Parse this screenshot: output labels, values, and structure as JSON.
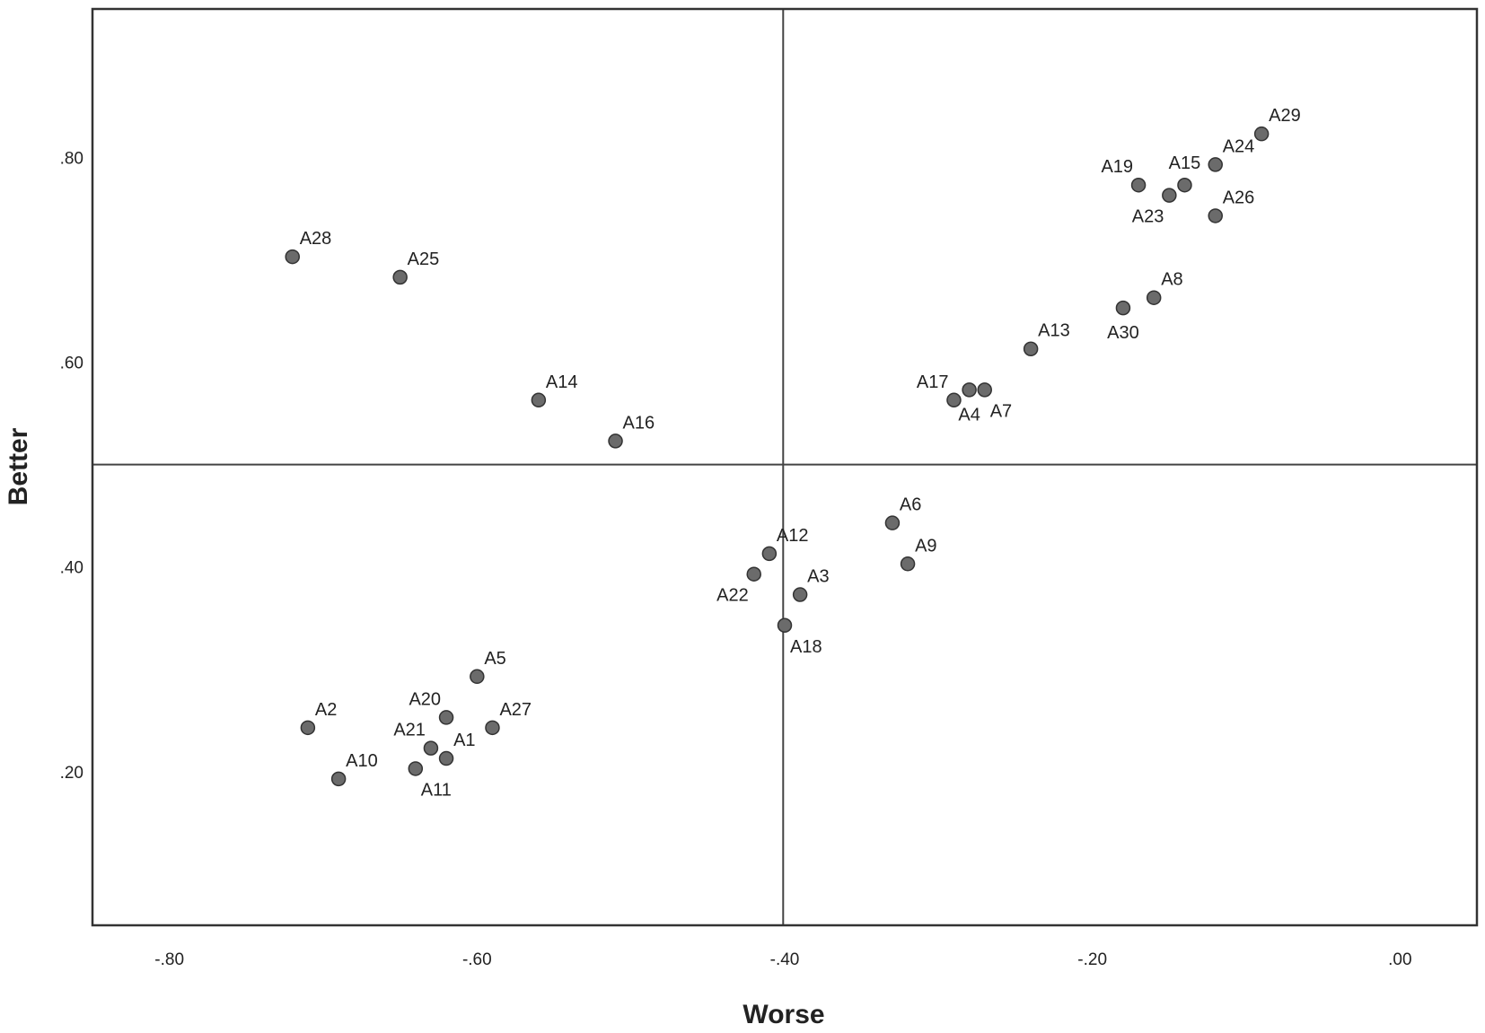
{
  "chart_data": {
    "type": "scatter",
    "xlabel": "Worse",
    "ylabel": "Better",
    "xlim": [
      -0.85,
      0.05
    ],
    "ylim": [
      0.05,
      0.945
    ],
    "x_ticks": [
      -0.8,
      -0.6,
      -0.4,
      -0.2,
      0.0
    ],
    "x_tick_labels": [
      "-.80",
      "-.60",
      "-.40",
      "-.20",
      ".00"
    ],
    "y_ticks": [
      0.2,
      0.4,
      0.6,
      0.8
    ],
    "y_tick_labels": [
      ".20",
      ".40",
      ".60",
      ".80"
    ],
    "reference_lines": {
      "x": -0.401,
      "y": 0.5
    },
    "grid": false,
    "legend": "none",
    "colors": {
      "point_fill": "#6b6b6b",
      "point_stroke": "#333333",
      "line": "#444444"
    },
    "points": [
      {
        "label": "A1",
        "x": -0.62,
        "y": 0.213,
        "label_pos": "ne"
      },
      {
        "label": "A2",
        "x": -0.71,
        "y": 0.243,
        "label_pos": "ne"
      },
      {
        "label": "A3",
        "x": -0.39,
        "y": 0.373,
        "label_pos": "ne"
      },
      {
        "label": "A4",
        "x": -0.28,
        "y": 0.573,
        "label_pos": "s"
      },
      {
        "label": "A5",
        "x": -0.6,
        "y": 0.293,
        "label_pos": "ne"
      },
      {
        "label": "A6",
        "x": -0.33,
        "y": 0.443,
        "label_pos": "ne"
      },
      {
        "label": "A7",
        "x": -0.27,
        "y": 0.573,
        "label_pos": "se"
      },
      {
        "label": "A8",
        "x": -0.16,
        "y": 0.663,
        "label_pos": "ne"
      },
      {
        "label": "A9",
        "x": -0.32,
        "y": 0.403,
        "label_pos": "ne"
      },
      {
        "label": "A10",
        "x": -0.69,
        "y": 0.193,
        "label_pos": "ne"
      },
      {
        "label": "A11",
        "x": -0.64,
        "y": 0.203,
        "label_pos": "se"
      },
      {
        "label": "A12",
        "x": -0.41,
        "y": 0.413,
        "label_pos": "ne"
      },
      {
        "label": "A13",
        "x": -0.24,
        "y": 0.613,
        "label_pos": "ne"
      },
      {
        "label": "A14",
        "x": -0.56,
        "y": 0.563,
        "label_pos": "ne"
      },
      {
        "label": "A15",
        "x": -0.14,
        "y": 0.773,
        "label_pos": "n"
      },
      {
        "label": "A16",
        "x": -0.51,
        "y": 0.523,
        "label_pos": "ne"
      },
      {
        "label": "A17",
        "x": -0.29,
        "y": 0.563,
        "label_pos": "nw"
      },
      {
        "label": "A18",
        "x": -0.4,
        "y": 0.343,
        "label_pos": "se"
      },
      {
        "label": "A19",
        "x": -0.17,
        "y": 0.773,
        "label_pos": "nw"
      },
      {
        "label": "A20",
        "x": -0.62,
        "y": 0.253,
        "label_pos": "nw"
      },
      {
        "label": "A21",
        "x": -0.63,
        "y": 0.223,
        "label_pos": "nw"
      },
      {
        "label": "A22",
        "x": -0.42,
        "y": 0.393,
        "label_pos": "sw"
      },
      {
        "label": "A23",
        "x": -0.15,
        "y": 0.763,
        "label_pos": "sw"
      },
      {
        "label": "A24",
        "x": -0.12,
        "y": 0.793,
        "label_pos": "ne"
      },
      {
        "label": "A25",
        "x": -0.65,
        "y": 0.683,
        "label_pos": "ne"
      },
      {
        "label": "A26",
        "x": -0.12,
        "y": 0.743,
        "label_pos": "ne"
      },
      {
        "label": "A27",
        "x": -0.59,
        "y": 0.243,
        "label_pos": "ne"
      },
      {
        "label": "A28",
        "x": -0.72,
        "y": 0.703,
        "label_pos": "ne"
      },
      {
        "label": "A29",
        "x": -0.09,
        "y": 0.823,
        "label_pos": "ne"
      },
      {
        "label": "A30",
        "x": -0.18,
        "y": 0.653,
        "label_pos": "s"
      }
    ]
  }
}
